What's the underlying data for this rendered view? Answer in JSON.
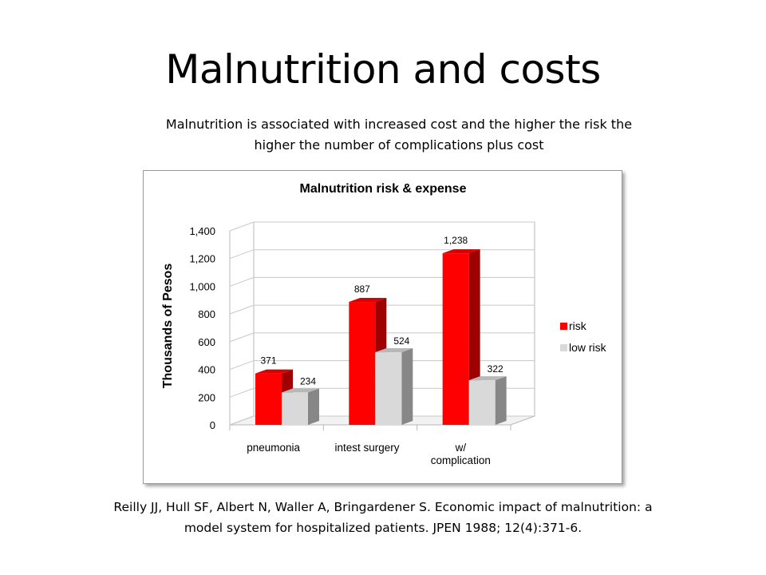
{
  "slide": {
    "title": "Malnutrition and costs",
    "subtitle_line1": "Malnutrition  is associated with increased cost and the higher the risk the",
    "subtitle_line2": "higher the number of complications plus cost",
    "citation_line1": "Reilly JJ, Hull SF, Albert N, Waller A, Bringardener  S. Economic impact of malnutrition: a",
    "citation_line2": "model system for hospitalized patients. JPEN 1988; 12(4):371-6."
  },
  "chart_data": {
    "type": "bar",
    "title": "Malnutrition risk  & expense",
    "xlabel": "",
    "ylabel": "Thousands of Pesos",
    "categories": [
      [
        "pneumonia"
      ],
      [
        "intest surgery"
      ],
      [
        "w/",
        "complication"
      ]
    ],
    "series": [
      {
        "name": "risk",
        "values": [
          371,
          887,
          1238
        ],
        "value_labels": [
          "371",
          "887",
          "1,238"
        ],
        "color": "#ff0000"
      },
      {
        "name": "low risk",
        "values": [
          234,
          524,
          322
        ],
        "value_labels": [
          "234",
          "524",
          "322"
        ],
        "color": "#d9d9d9"
      }
    ],
    "ylim": [
      0,
      1400
    ],
    "yticks": [
      0,
      200,
      400,
      600,
      800,
      1000,
      1200,
      1400
    ],
    "ytick_labels": [
      "0",
      "200",
      "400",
      "600",
      "800",
      "1,000",
      "1,200",
      "1,400"
    ],
    "grid": true,
    "three_d": true,
    "legend_position": "right"
  }
}
